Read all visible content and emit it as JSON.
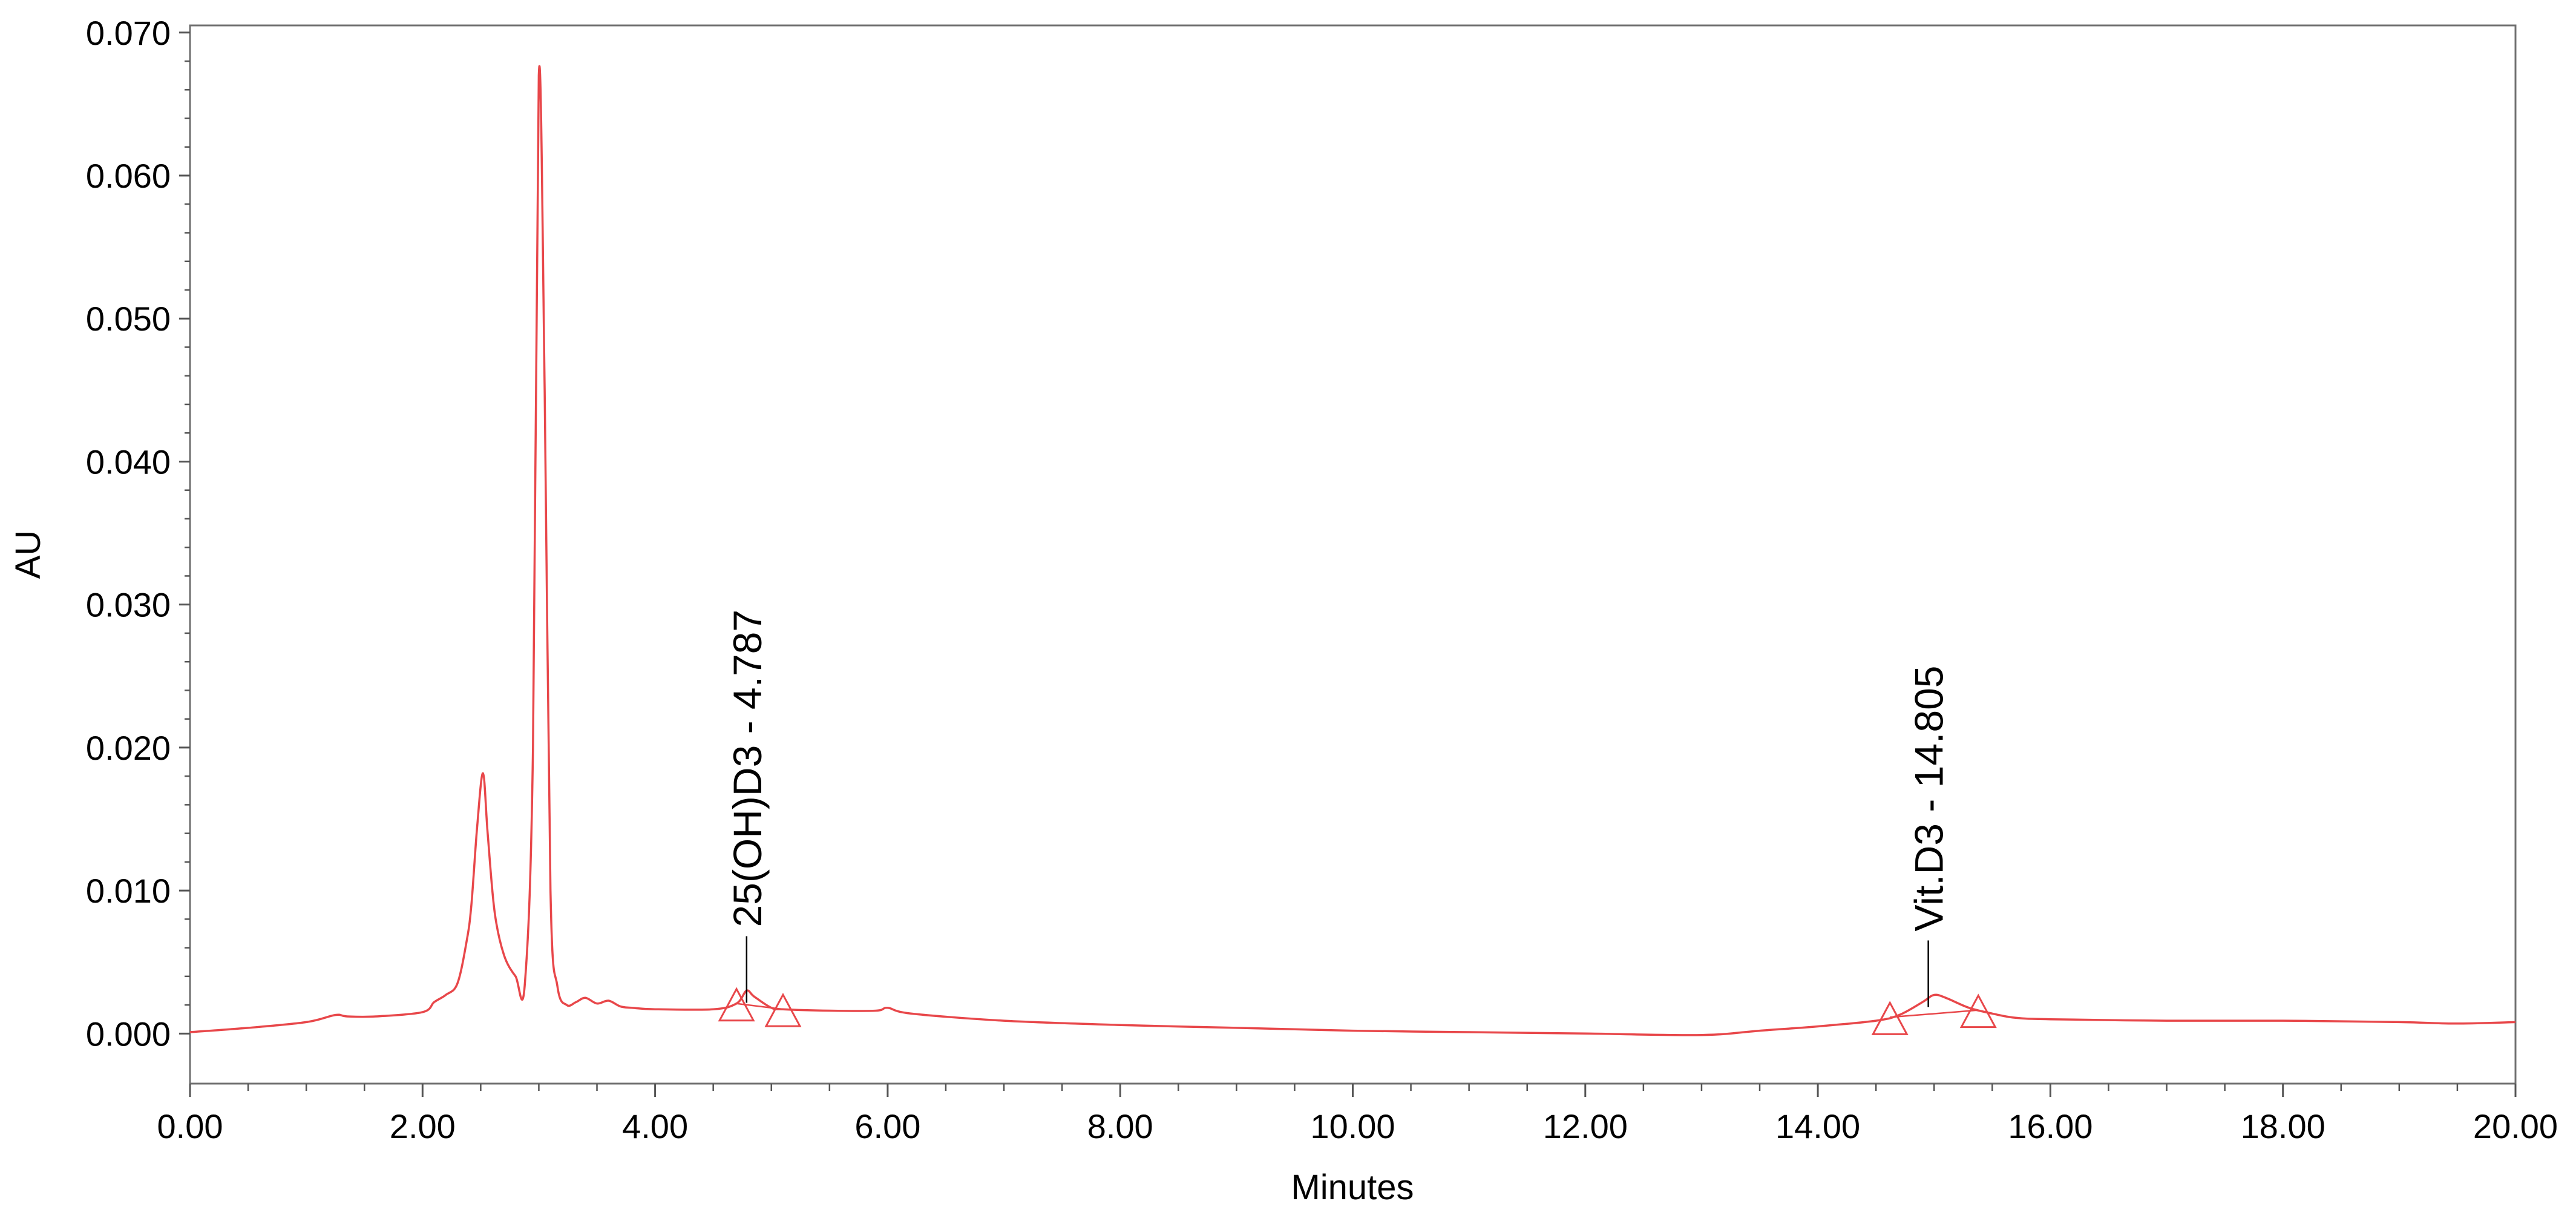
{
  "chart_data": {
    "type": "line",
    "title": "",
    "xlabel": "Minutes",
    "ylabel": "AU",
    "xlim": [
      0,
      20
    ],
    "ylim": [
      -0.0035,
      0.0705
    ],
    "x_ticks": [
      "0.00",
      "2.00",
      "4.00",
      "6.00",
      "8.00",
      "10.00",
      "12.00",
      "14.00",
      "16.00",
      "18.00",
      "20.00"
    ],
    "x_tick_values": [
      0,
      2,
      4,
      6,
      8,
      10,
      12,
      14,
      16,
      18,
      20
    ],
    "y_ticks": [
      "0.000",
      "0.010",
      "0.020",
      "0.030",
      "0.040",
      "0.050",
      "0.060",
      "0.070"
    ],
    "y_tick_values": [
      0,
      0.01,
      0.02,
      0.03,
      0.04,
      0.05,
      0.06,
      0.07
    ],
    "grid": false,
    "legend": "none",
    "line_color": "#e8474a",
    "series": [
      {
        "x": [
          0.0,
          0.5,
          1.0,
          1.25,
          1.35,
          1.6,
          2.0,
          2.1,
          2.2,
          2.3,
          2.38,
          2.42,
          2.47,
          2.52,
          2.56,
          2.62,
          2.7,
          2.8,
          2.88,
          2.95,
          3.0,
          3.05,
          3.1,
          3.16,
          3.24,
          3.32,
          3.4,
          3.5,
          3.6,
          3.7,
          3.8,
          4.0,
          4.5,
          4.7,
          4.787,
          4.85,
          5.0,
          5.1,
          5.5,
          5.9,
          6.0,
          6.2,
          7.0,
          8.0,
          9.0,
          10.0,
          11.0,
          12.0,
          13.0,
          13.5,
          14.0,
          14.5,
          14.7,
          14.9,
          15.0,
          15.1,
          15.3,
          15.5,
          15.7,
          16.0,
          17.0,
          18.0,
          19.0,
          19.5,
          20.0
        ],
        "y": [
          0.0001,
          0.0004,
          0.0008,
          0.0013,
          0.0012,
          0.0012,
          0.0015,
          0.0022,
          0.0027,
          0.0035,
          0.0065,
          0.009,
          0.0145,
          0.0182,
          0.014,
          0.0085,
          0.0055,
          0.004,
          0.0035,
          0.02,
          0.067,
          0.045,
          0.01,
          0.0033,
          0.002,
          0.0022,
          0.0025,
          0.0021,
          0.0023,
          0.0019,
          0.0018,
          0.0017,
          0.0017,
          0.0021,
          0.003,
          0.0026,
          0.0018,
          0.0017,
          0.0016,
          0.0016,
          0.0018,
          0.0014,
          0.0009,
          0.0006,
          0.0004,
          0.0002,
          0.0001,
          0.0,
          -0.0001,
          0.0002,
          0.0005,
          0.0009,
          0.0013,
          0.0022,
          0.0027,
          0.0025,
          0.0018,
          0.0014,
          0.0011,
          0.001,
          0.0009,
          0.0009,
          0.0008,
          0.0007,
          0.0008
        ]
      }
    ],
    "annotations": [
      {
        "label": "25(OH)D3 - 4.787",
        "x": 4.787,
        "y": 0.003,
        "markers": [
          4.7,
          5.1
        ]
      },
      {
        "label": "Vit.D3 - 14.805",
        "x": 14.95,
        "y": 0.0027,
        "markers": [
          14.62,
          15.38
        ]
      }
    ]
  }
}
